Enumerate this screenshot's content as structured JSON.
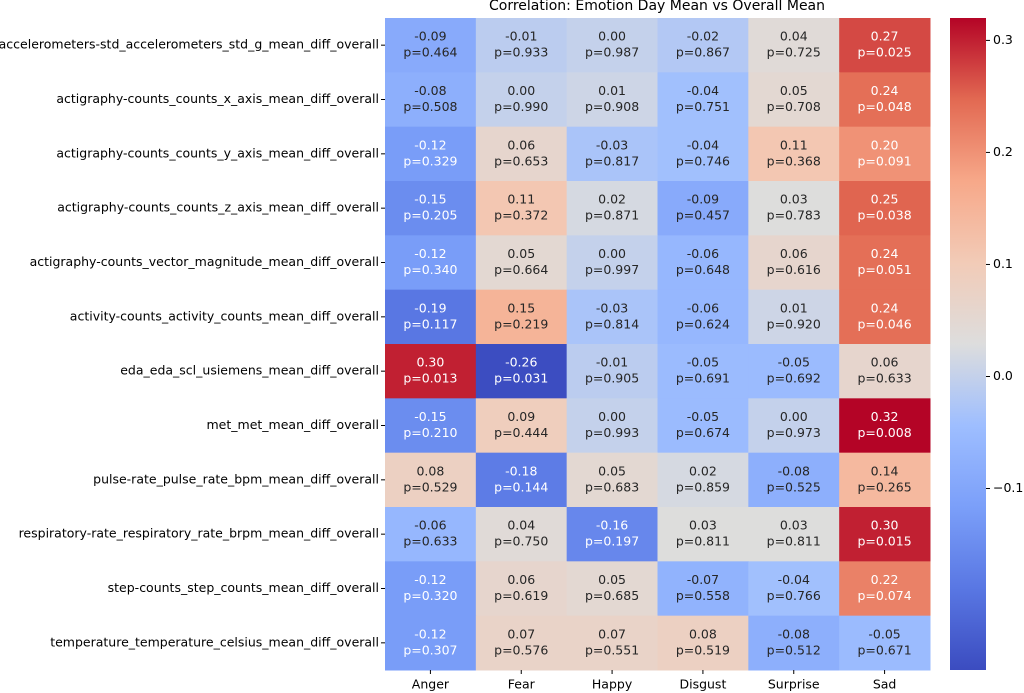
{
  "chart_data": {
    "type": "heatmap",
    "title": "Correlation: Emotion Day Mean vs Overall Mean",
    "columns": [
      "Anger",
      "Fear",
      "Happy",
      "Disgust",
      "Surprise",
      "Sad"
    ],
    "rows": [
      "accelerometers-std_accelerometers_std_g_mean_diff_overall",
      "actigraphy-counts_counts_x_axis_mean_diff_overall",
      "actigraphy-counts_counts_y_axis_mean_diff_overall",
      "actigraphy-counts_counts_z_axis_mean_diff_overall",
      "actigraphy-counts_vector_magnitude_mean_diff_overall",
      "activity-counts_activity_counts_mean_diff_overall",
      "eda_eda_scl_usiemens_mean_diff_overall",
      "met_met_mean_diff_overall",
      "pulse-rate_pulse_rate_bpm_mean_diff_overall",
      "respiratory-rate_respiratory_rate_brpm_mean_diff_overall",
      "step-counts_step_counts_mean_diff_overall",
      "temperature_temperature_celsius_mean_diff_overall"
    ],
    "values": [
      [
        -0.09,
        -0.01,
        0,
        -0.02,
        0.04,
        0.27
      ],
      [
        -0.08,
        0,
        0.01,
        -0.04,
        0.05,
        0.24
      ],
      [
        -0.12,
        0.06,
        -0.03,
        -0.04,
        0.11,
        0.2
      ],
      [
        -0.15,
        0.11,
        0.02,
        -0.09,
        0.03,
        0.25
      ],
      [
        -0.12,
        0.05,
        0,
        -0.06,
        0.06,
        0.24
      ],
      [
        -0.19,
        0.15,
        -0.03,
        -0.06,
        0.01,
        0.24
      ],
      [
        0.3,
        -0.26,
        -0.01,
        -0.05,
        -0.05,
        0.06
      ],
      [
        -0.15,
        0.09,
        0,
        -0.05,
        0,
        0.32
      ],
      [
        0.08,
        -0.18,
        0.05,
        0.02,
        -0.08,
        0.14
      ],
      [
        -0.06,
        0.04,
        -0.16,
        0.03,
        0.03,
        0.3
      ],
      [
        -0.12,
        0.06,
        0.05,
        -0.07,
        -0.04,
        0.22
      ],
      [
        -0.12,
        0.07,
        0.07,
        0.08,
        -0.08,
        -0.05
      ]
    ],
    "value_labels": [
      [
        "-0.09",
        "-0.01",
        "0.00",
        "-0.02",
        "0.04",
        "0.27"
      ],
      [
        "-0.08",
        "0.00",
        "0.01",
        "-0.04",
        "0.05",
        "0.24"
      ],
      [
        "-0.12",
        "0.06",
        "-0.03",
        "-0.04",
        "0.11",
        "0.20"
      ],
      [
        "-0.15",
        "0.11",
        "0.02",
        "-0.09",
        "0.03",
        "0.25"
      ],
      [
        "-0.12",
        "0.05",
        "0.00",
        "-0.06",
        "0.06",
        "0.24"
      ],
      [
        "-0.19",
        "0.15",
        "-0.03",
        "-0.06",
        "0.01",
        "0.24"
      ],
      [
        "0.30",
        "-0.26",
        "-0.01",
        "-0.05",
        "-0.05",
        "0.06"
      ],
      [
        "-0.15",
        "0.09",
        "0.00",
        "-0.05",
        "0.00",
        "0.32"
      ],
      [
        "0.08",
        "-0.18",
        "0.05",
        "0.02",
        "-0.08",
        "0.14"
      ],
      [
        "-0.06",
        "0.04",
        "-0.16",
        "0.03",
        "0.03",
        "0.30"
      ],
      [
        "-0.12",
        "0.06",
        "0.05",
        "-0.07",
        "-0.04",
        "0.22"
      ],
      [
        "-0.12",
        "0.07",
        "0.07",
        "0.08",
        "-0.08",
        "-0.05"
      ]
    ],
    "p_labels": [
      [
        "p=0.464",
        "p=0.933",
        "p=0.987",
        "p=0.867",
        "p=0.725",
        "p=0.025"
      ],
      [
        "p=0.508",
        "p=0.990",
        "p=0.908",
        "p=0.751",
        "p=0.708",
        "p=0.048"
      ],
      [
        "p=0.329",
        "p=0.653",
        "p=0.817",
        "p=0.746",
        "p=0.368",
        "p=0.091"
      ],
      [
        "p=0.205",
        "p=0.372",
        "p=0.871",
        "p=0.457",
        "p=0.783",
        "p=0.038"
      ],
      [
        "p=0.340",
        "p=0.664",
        "p=0.997",
        "p=0.648",
        "p=0.616",
        "p=0.051"
      ],
      [
        "p=0.117",
        "p=0.219",
        "p=0.814",
        "p=0.624",
        "p=0.920",
        "p=0.046"
      ],
      [
        "p=0.013",
        "p=0.031",
        "p=0.905",
        "p=0.691",
        "p=0.692",
        "p=0.633"
      ],
      [
        "p=0.210",
        "p=0.444",
        "p=0.993",
        "p=0.674",
        "p=0.973",
        "p=0.008"
      ],
      [
        "p=0.529",
        "p=0.144",
        "p=0.683",
        "p=0.859",
        "p=0.525",
        "p=0.265"
      ],
      [
        "p=0.633",
        "p=0.750",
        "p=0.197",
        "p=0.811",
        "p=0.811",
        "p=0.015"
      ],
      [
        "p=0.320",
        "p=0.619",
        "p=0.685",
        "p=0.558",
        "p=0.766",
        "p=0.074"
      ],
      [
        "p=0.307",
        "p=0.576",
        "p=0.551",
        "p=0.519",
        "p=0.512",
        "p=0.671"
      ]
    ],
    "colormap": [
      "#3b4cc0",
      "#5977e3",
      "#7b9ff9",
      "#9ebeff",
      "#dddddd",
      "#f2cbb7",
      "#f7a889",
      "#e26952",
      "#b40426"
    ],
    "ylim": [
      -0.262,
      0.32
    ],
    "yticks": [
      {
        "value": -0.1,
        "label": "−0.1"
      },
      {
        "value": 0,
        "label": "0.0"
      },
      0.1,
      0.2,
      0.3
    ]
  }
}
